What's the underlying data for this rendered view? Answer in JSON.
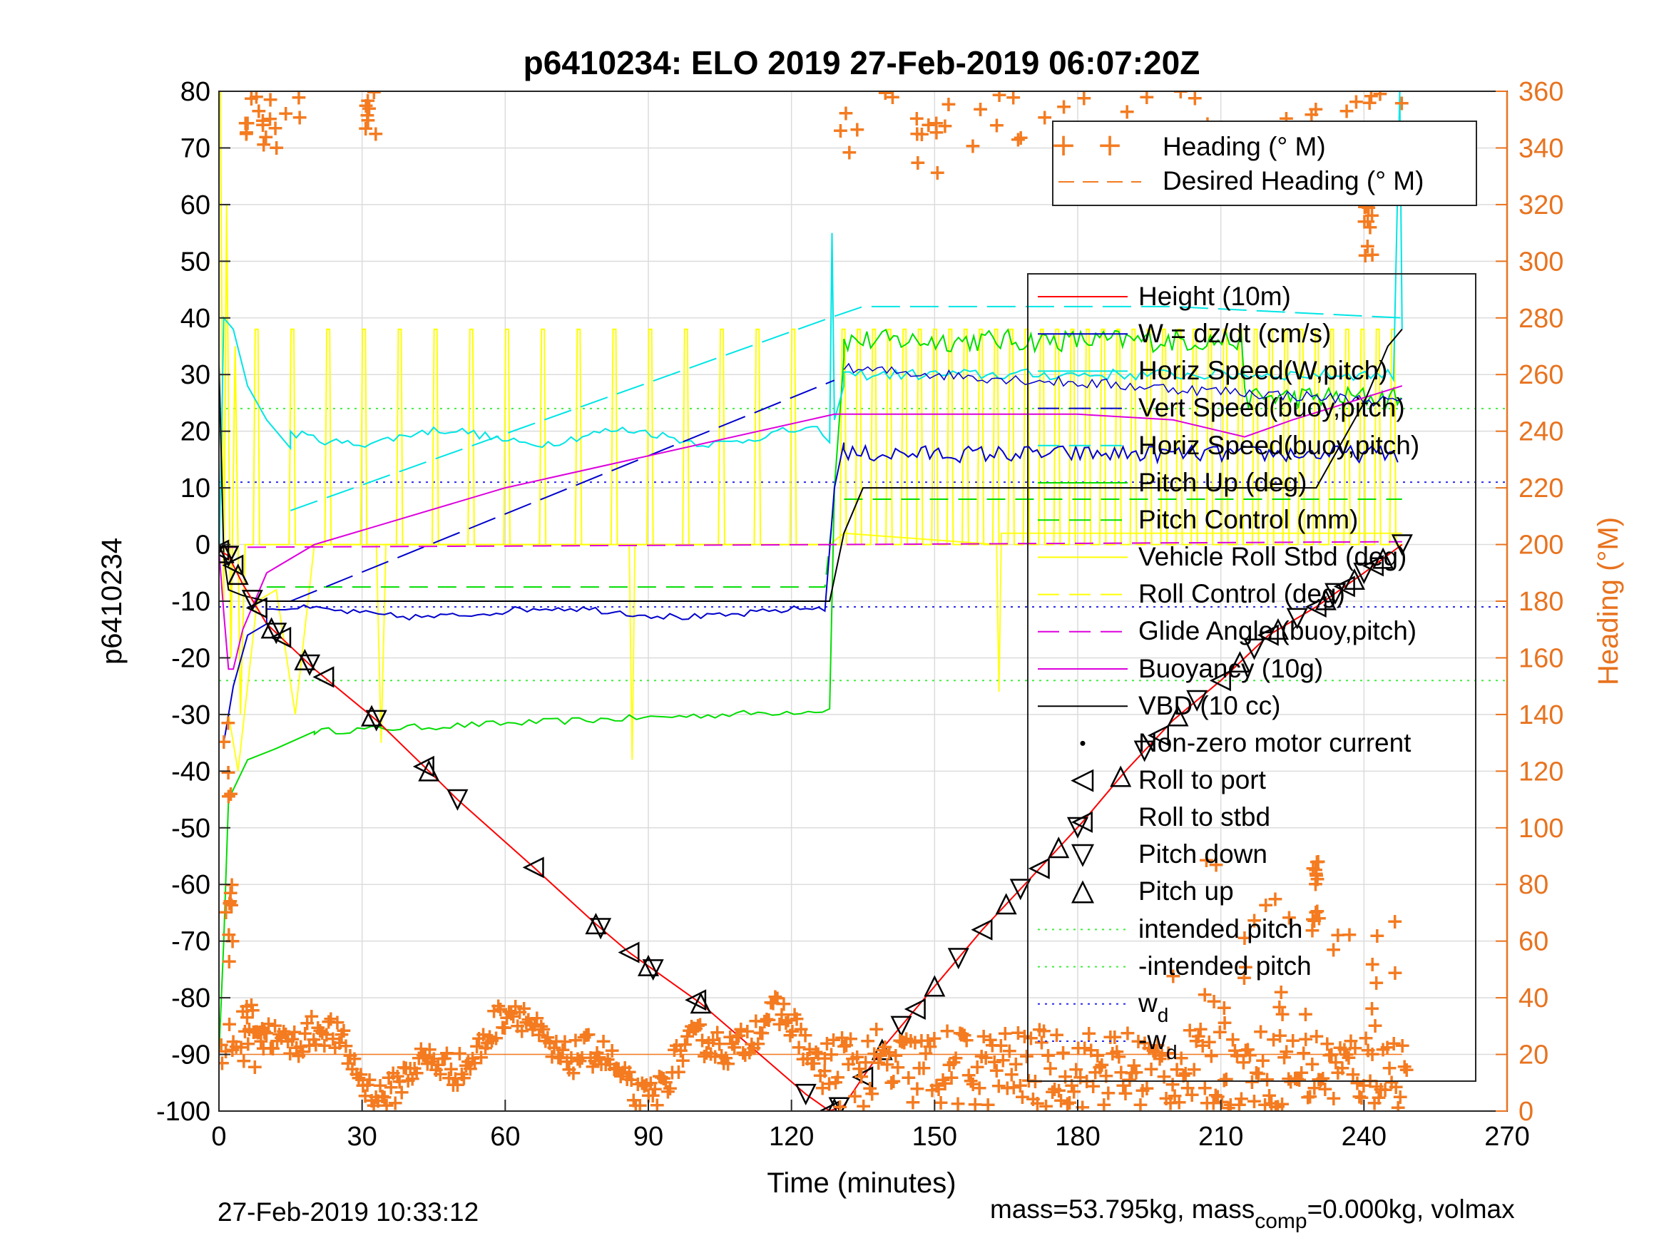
{
  "chart_data": {
    "type": "line",
    "title": "p6410234: ELO 2019 27-Feb-2019 06:07:20Z",
    "xlabel": "Time (minutes)",
    "ylabel_left": "p6410234",
    "ylabel_right": "Heading (°M)",
    "xlim": [
      0,
      270
    ],
    "ylim_left": [
      -100,
      80
    ],
    "ylim_right": [
      0,
      360
    ],
    "xticks": [
      0,
      30,
      60,
      90,
      120,
      150,
      180,
      210,
      240,
      270
    ],
    "yticks_left": [
      80,
      70,
      60,
      50,
      40,
      30,
      20,
      10,
      0,
      -10,
      -20,
      -30,
      -40,
      -50,
      -60,
      -70,
      -80,
      -90,
      -100
    ],
    "yticks_right": [
      360,
      340,
      320,
      300,
      280,
      260,
      240,
      220,
      200,
      180,
      160,
      140,
      120,
      100,
      80,
      60,
      40,
      20,
      0
    ],
    "grid": true,
    "legend_top_labels": [
      "Heading (° M)",
      "Desired Heading (° M)"
    ],
    "legend_main_labels": [
      "Height (10m)",
      "W = dz/dt (cm/s)",
      "Horiz Speed(W,pitch)",
      "Vert Speed(buoy,pitch)",
      "Horiz Speed(buoy,pitch)",
      "Pitch Up (deg)",
      "Pitch Control (mm)",
      "Vehicle Roll Stbd (deg)",
      "Roll Control (deg)",
      "Glide Angle (buoy,pitch)",
      "Buoyancy (10g)",
      "VBD (10 cc)",
      "Non-zero motor current",
      "Roll to port",
      "Roll to stbd",
      "Pitch down",
      "Pitch up",
      "intended pitch",
      "-intended pitch",
      "w",
      "-w"
    ],
    "legend_subscript": "d",
    "colors": {
      "height": "#ff0000",
      "w": "#0000cc",
      "horiz_speed": "#00e5e5",
      "pitch": "#00dd00",
      "roll": "#ffff00",
      "buoyancy": "#dd00dd",
      "vbd": "#000000",
      "heading": "#f47b20",
      "right_axis": "#e8731f"
    },
    "series": [
      {
        "name": "Height (10m)",
        "x": [
          0,
          2,
          5,
          10,
          20,
          33,
          44,
          50,
          66,
          79,
          86,
          91,
          101,
          123,
          128,
          131,
          135,
          140,
          150,
          160,
          170,
          181,
          190,
          200,
          210,
          220,
          230,
          240,
          248
        ],
        "y": [
          -1,
          -2,
          -7,
          -14,
          -22,
          -31,
          -40,
          -45,
          -57,
          -67,
          -72,
          -75,
          -81,
          -97,
          -100,
          -99,
          -94,
          -88,
          -78,
          -68,
          -59,
          -49,
          -40,
          -31,
          -24,
          -16,
          -11,
          -5,
          0
        ]
      },
      {
        "name": "Vert Speed(buoy,pitch)",
        "x": [
          15,
          129
        ],
        "y": [
          -10,
          29
        ]
      },
      {
        "name": "Horiz Speed(buoy,pitch)",
        "x": [
          15,
          128,
          135,
          160,
          200,
          248
        ],
        "y": [
          6,
          40,
          42,
          42,
          42,
          40
        ]
      },
      {
        "name": "Buoyancy (10g)",
        "x": [
          0,
          1,
          2,
          3,
          5,
          10,
          20,
          60,
          129,
          130,
          180,
          200,
          215,
          225,
          248
        ],
        "y": [
          -1,
          -12,
          -22,
          -22,
          -15,
          -5,
          0,
          10,
          23,
          23,
          23,
          22,
          19,
          22,
          28
        ]
      },
      {
        "name": "Glide Angle (buoy,pitch)",
        "x": [
          0,
          129,
          248
        ],
        "y": [
          -0.5,
          0,
          0.5
        ]
      },
      {
        "name": "VBD (10 cc)",
        "x": [
          0,
          1,
          2,
          5,
          10,
          128,
          131,
          135,
          230,
          240,
          245,
          248
        ],
        "y": [
          32,
          -2,
          -8,
          -9,
          -10,
          -10,
          2,
          10,
          10,
          25,
          35,
          38
        ]
      },
      {
        "name": "Pitch Control (mm)",
        "x": [
          10,
          127,
          129,
          248
        ],
        "y": [
          -7.5,
          -7.5,
          8,
          8
        ]
      }
    ],
    "reference_lines": [
      {
        "name": "intended pitch",
        "y": 24
      },
      {
        "name": "-intended pitch",
        "y": -24
      },
      {
        "name": "w",
        "y": 11
      },
      {
        "name": "-w",
        "y": -11
      }
    ]
  },
  "footer": {
    "timestamp": "27-Feb-2019 10:33:12",
    "mass_text": "mass=53.795kg, mass",
    "mass_sub": "comp",
    "mass_rest": "=0.000kg, volmax"
  }
}
